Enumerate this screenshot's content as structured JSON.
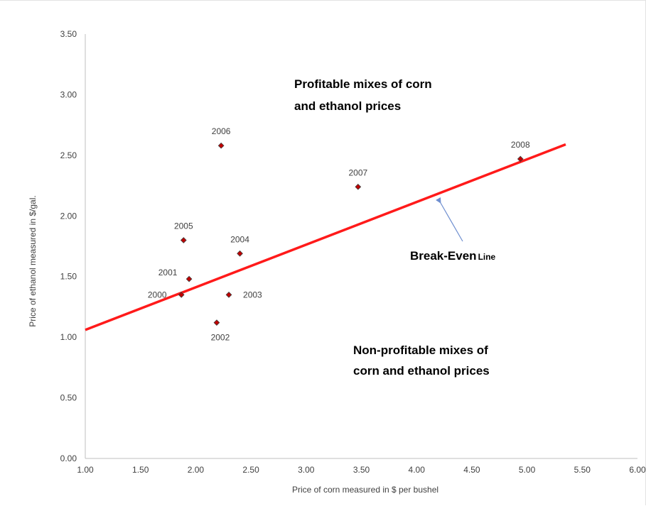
{
  "chart_data": {
    "type": "scatter",
    "xlabel": "Price of corn measured in $ per bushel",
    "ylabel": "Price of ethanol measured in $/gal.",
    "xlim": [
      1.0,
      6.0
    ],
    "ylim": [
      0.0,
      3.5
    ],
    "x_ticks": [
      "1.00",
      "1.50",
      "2.00",
      "2.50",
      "3.00",
      "3.50",
      "4.00",
      "4.50",
      "5.00",
      "5.50",
      "6.00"
    ],
    "y_ticks": [
      "0.00",
      "0.50",
      "1.00",
      "1.50",
      "2.00",
      "2.50",
      "3.00",
      "3.50"
    ],
    "grid": false,
    "points": [
      {
        "label": "2000",
        "x": 1.87,
        "y": 1.35
      },
      {
        "label": "2001",
        "x": 1.94,
        "y": 1.48
      },
      {
        "label": "2002",
        "x": 2.19,
        "y": 1.12
      },
      {
        "label": "2003",
        "x": 2.3,
        "y": 1.35
      },
      {
        "label": "2004",
        "x": 2.4,
        "y": 1.69
      },
      {
        "label": "2005",
        "x": 1.89,
        "y": 1.8
      },
      {
        "label": "2006",
        "x": 2.23,
        "y": 2.58
      },
      {
        "label": "2007",
        "x": 3.47,
        "y": 2.24
      },
      {
        "label": "2008",
        "x": 4.94,
        "y": 2.47
      }
    ],
    "break_even_line": {
      "x": [
        1.0,
        5.35
      ],
      "y": [
        1.06,
        2.59
      ],
      "color": "#ff1a1a"
    },
    "annotations": {
      "profitable": [
        "Profitable mixes of corn",
        "and ethanol prices"
      ],
      "non_profitable": [
        "Non-profitable mixes of",
        "corn and ethanol prices"
      ],
      "break_even_main": "Break-Even",
      "break_even_suffix": "Line"
    },
    "colors": {
      "point_fill": "#c00000",
      "point_stroke": "#404040",
      "arrow": "#6f8fd0",
      "axis": "#bfbfbf"
    }
  }
}
